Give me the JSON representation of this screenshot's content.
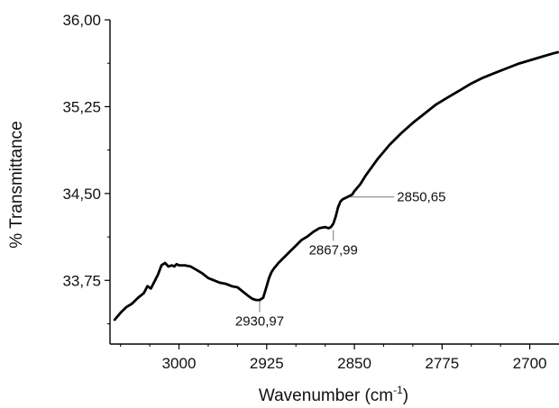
{
  "chart_data": {
    "type": "line",
    "title": "",
    "xlabel": "Wavenumber (cm",
    "xlabel_sup": "-1",
    "xlabel_close": ")",
    "ylabel": "% Transmittance",
    "xlim": [
      3059,
      2675
    ],
    "ylim": [
      33.2,
      36.0
    ],
    "x_reversed": true,
    "grid": false,
    "x_ticks": [
      3000,
      2925,
      2850,
      2775,
      2700
    ],
    "x_tick_labels": [
      "3000",
      "2925",
      "2850",
      "2775",
      "2700"
    ],
    "y_ticks": [
      33.75,
      34.5,
      35.25,
      36.0
    ],
    "y_tick_labels": [
      "33,75",
      "34,50",
      "35,25",
      "36,00"
    ],
    "line_color": "#000000",
    "series": [
      {
        "x": [
          3055,
          3050,
          3045,
          3040,
          3035,
          3030,
          3027,
          3024,
          3021,
          3018,
          3015,
          3012,
          3009,
          3006,
          3004,
          3002,
          3000,
          2995,
          2990,
          2985,
          2980,
          2975,
          2970,
          2965,
          2960,
          2955,
          2950,
          2945,
          2940,
          2937,
          2934,
          2931,
          2928,
          2925,
          2923,
          2921,
          2919,
          2915,
          2910,
          2905,
          2900,
          2895,
          2890,
          2885,
          2880,
          2875,
          2872,
          2870,
          2868,
          2866,
          2864,
          2862,
          2860,
          2858,
          2856,
          2854,
          2852,
          2850,
          2845,
          2840,
          2835,
          2830,
          2825,
          2820,
          2810,
          2800,
          2790,
          2780,
          2770,
          2760,
          2750,
          2740,
          2730,
          2720,
          2710,
          2700,
          2690,
          2680,
          2676
        ],
        "y": [
          33.41,
          33.47,
          33.52,
          33.55,
          33.6,
          33.64,
          33.7,
          33.68,
          33.74,
          33.8,
          33.88,
          33.9,
          33.87,
          33.88,
          33.87,
          33.89,
          33.88,
          33.88,
          33.87,
          33.84,
          33.81,
          33.77,
          33.75,
          33.73,
          33.72,
          33.7,
          33.69,
          33.65,
          33.61,
          33.59,
          33.58,
          33.58,
          33.6,
          33.7,
          33.77,
          33.82,
          33.85,
          33.9,
          33.95,
          34.0,
          34.05,
          34.1,
          34.13,
          34.17,
          34.2,
          34.21,
          34.2,
          34.21,
          34.24,
          34.3,
          34.38,
          34.43,
          34.45,
          34.46,
          34.47,
          34.48,
          34.49,
          34.52,
          34.58,
          34.66,
          34.73,
          34.8,
          34.86,
          34.92,
          35.02,
          35.11,
          35.19,
          35.27,
          35.33,
          35.39,
          35.45,
          35.5,
          35.54,
          35.58,
          35.62,
          35.65,
          35.68,
          35.71,
          35.72
        ]
      }
    ],
    "annotations": [
      {
        "label": "2930,97",
        "x": 2931,
        "y": 33.585,
        "anchor": "below"
      },
      {
        "label": "2867,99",
        "x": 2868,
        "y": 34.2,
        "anchor": "below"
      },
      {
        "label": "2850,65",
        "x": 2856,
        "y": 34.47,
        "anchor": "right"
      }
    ]
  }
}
